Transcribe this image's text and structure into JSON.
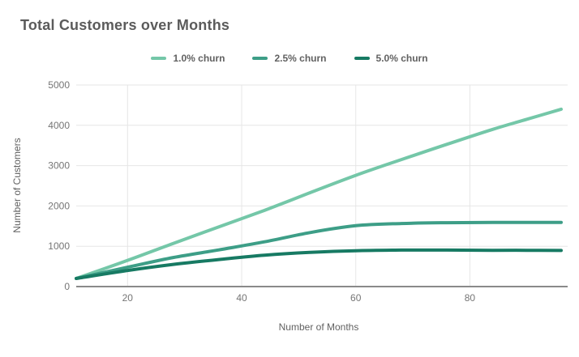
{
  "chart": {
    "title": "Total Customers over Months",
    "title_color": "#5b5b5b"
  },
  "chart_data": {
    "type": "line",
    "title": "Total Customers over Months",
    "xlabel": "Number of Months",
    "ylabel": "Number of Customers",
    "x": [
      11,
      20,
      28,
      36,
      44,
      52,
      60,
      68,
      76,
      84,
      90,
      96
    ],
    "series": [
      {
        "name": "1.0% churn",
        "color": "#74c7a8",
        "values": [
          200,
          650,
          1070,
          1480,
          1890,
          2330,
          2760,
          3150,
          3530,
          3900,
          4150,
          4400
        ]
      },
      {
        "name": "2.5% churn",
        "color": "#3d9e87",
        "values": [
          200,
          480,
          720,
          910,
          1110,
          1340,
          1510,
          1565,
          1585,
          1590,
          1590,
          1590
        ]
      },
      {
        "name": "5.0% churn",
        "color": "#177a63",
        "values": [
          200,
          400,
          550,
          670,
          780,
          850,
          890,
          905,
          905,
          900,
          900,
          895
        ]
      }
    ],
    "xlim": [
      11,
      96
    ],
    "ylim": [
      0,
      5000
    ],
    "x_ticks": [
      20,
      40,
      60,
      80
    ],
    "y_ticks": [
      0,
      1000,
      2000,
      3000,
      4000,
      5000
    ],
    "grid": true,
    "legend_position": "top",
    "grid_color": "#e6e6e6",
    "baseline_color": "#8a8a8a"
  }
}
